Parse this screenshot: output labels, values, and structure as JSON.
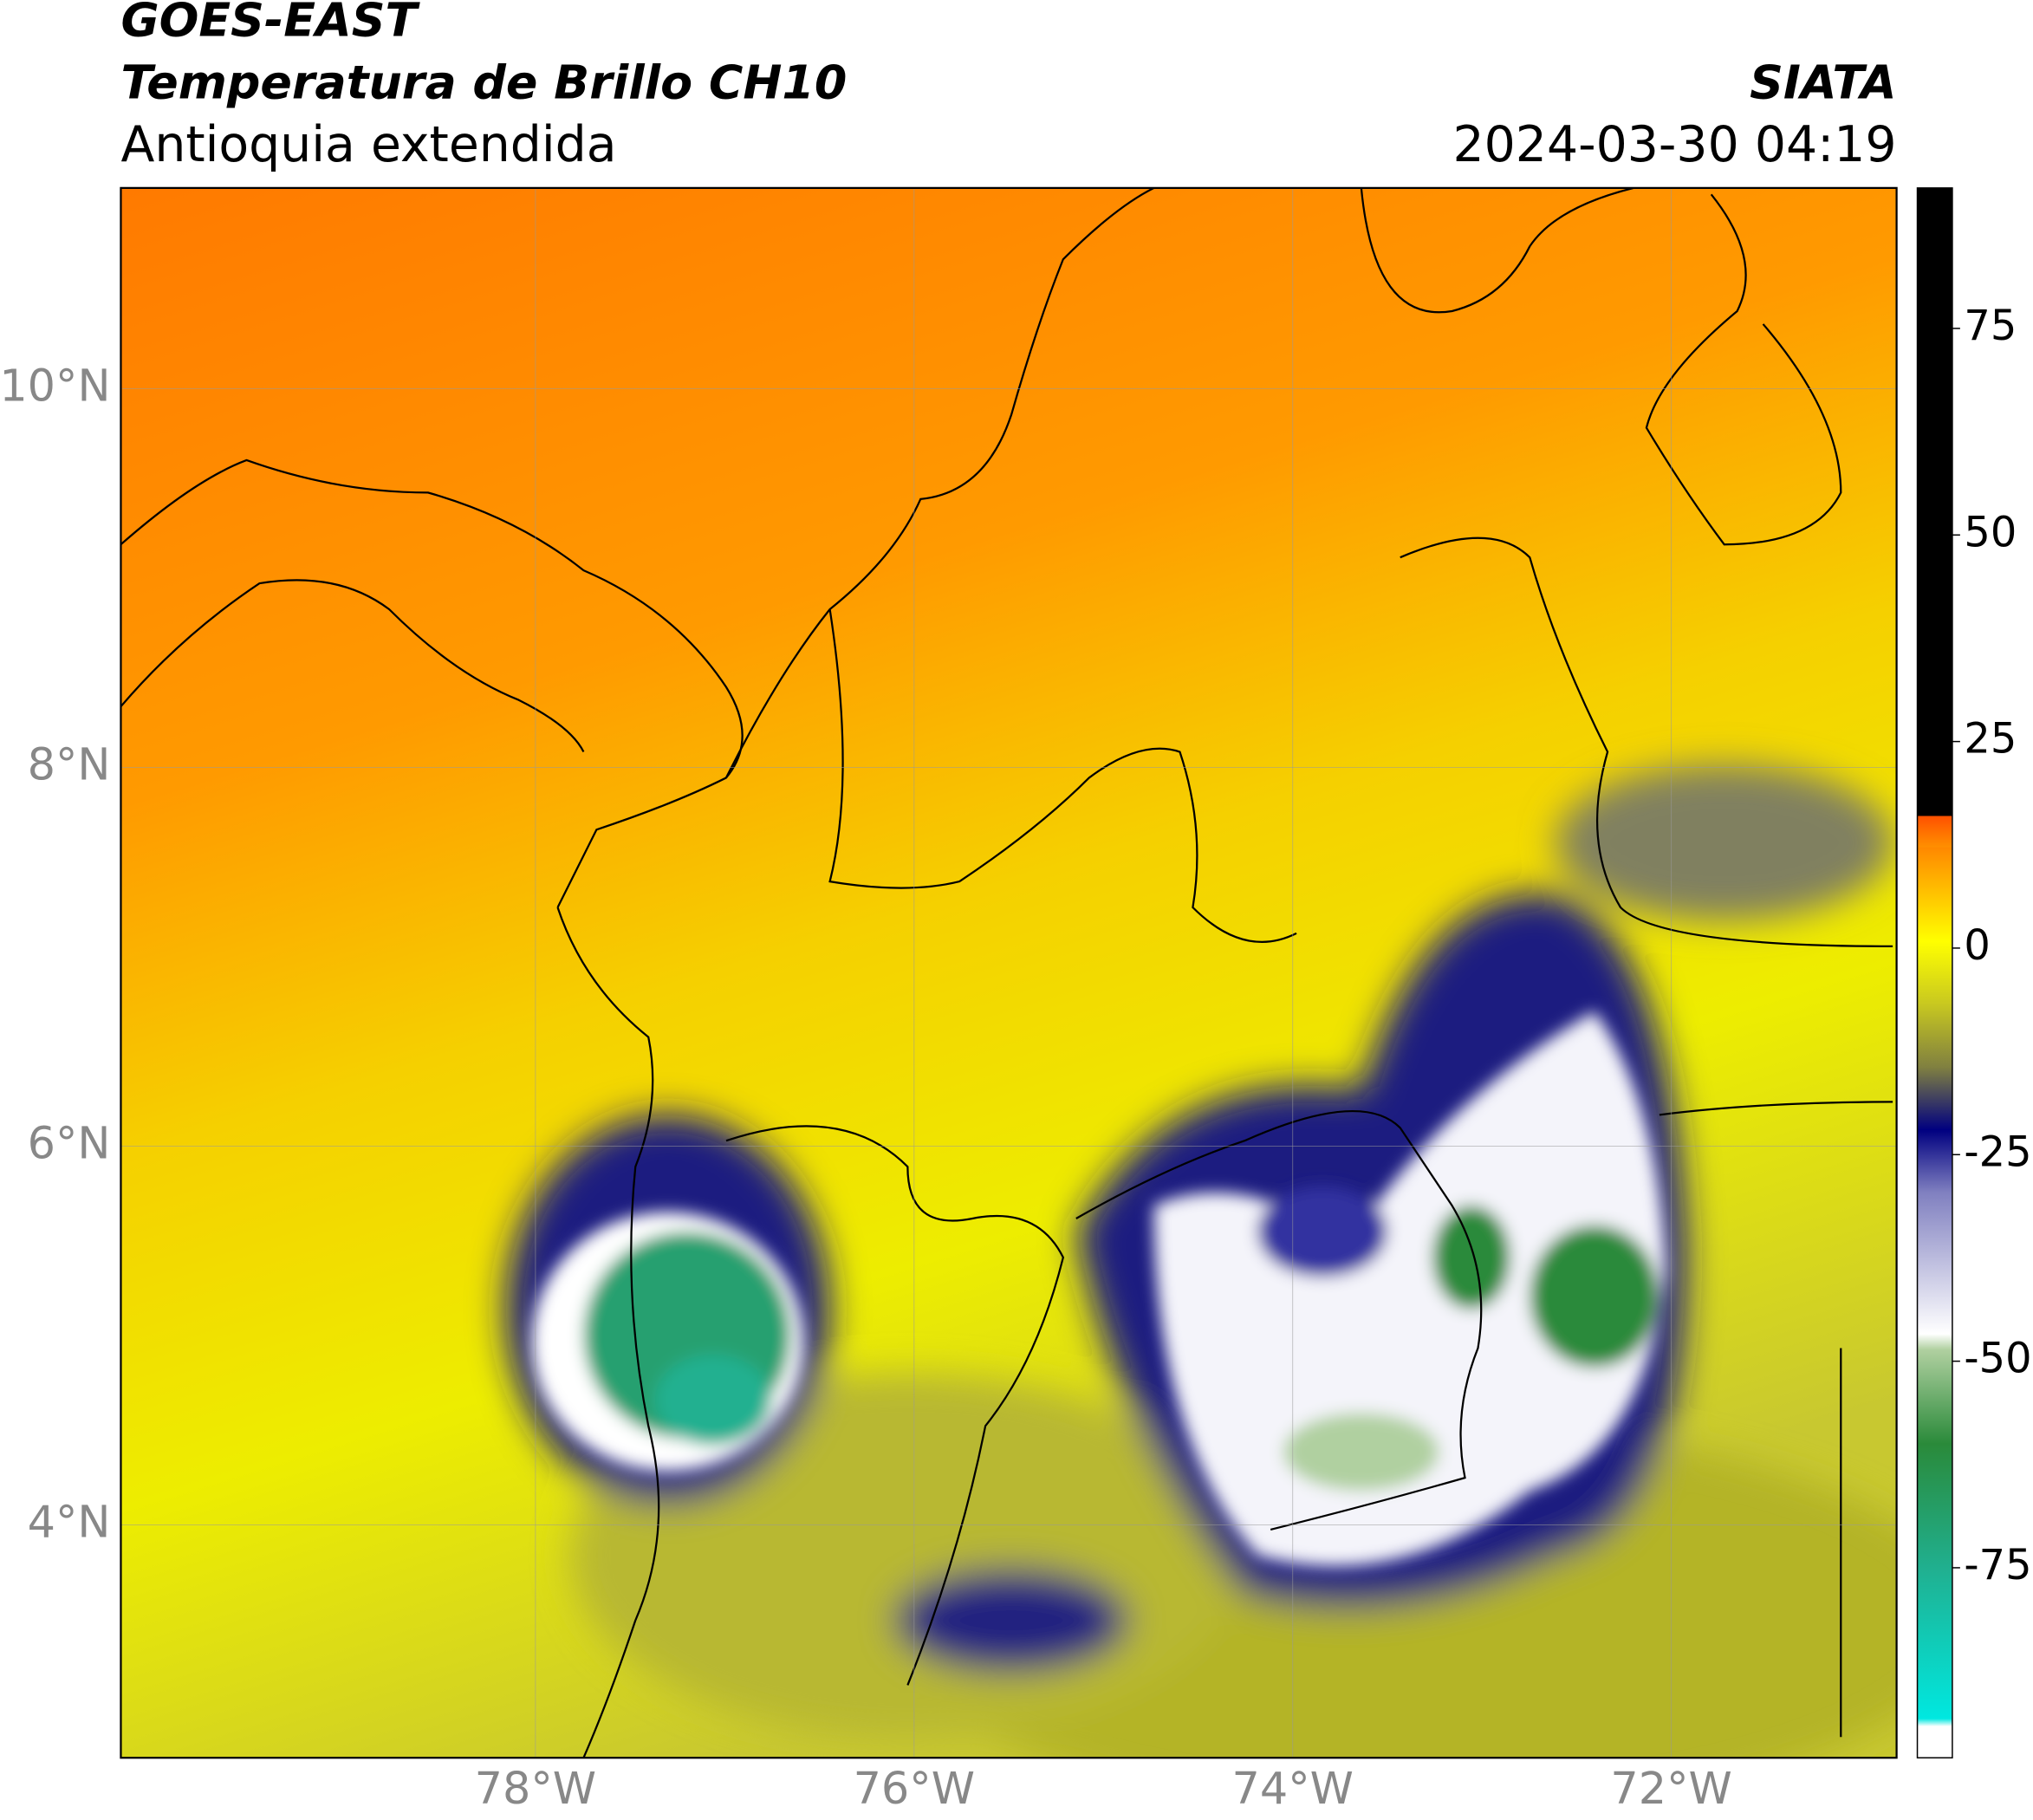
{
  "header": {
    "title": "GOES-EAST",
    "subtitle": "Temperatura de Brillo CH10",
    "region": "Antioquia extendida",
    "source": "SIATA",
    "datetime": "2024-03-30 04:19"
  },
  "map": {
    "xlim": [
      -80.19,
      -70.81
    ],
    "ylim": [
      2.77,
      11.06
    ],
    "xticks": [
      {
        "value": -78,
        "label": "78°W"
      },
      {
        "value": -76,
        "label": "76°W"
      },
      {
        "value": -74,
        "label": "74°W"
      },
      {
        "value": -72,
        "label": "72°W"
      }
    ],
    "yticks": [
      {
        "value": 4,
        "label": "4°N"
      },
      {
        "value": 6,
        "label": "6°N"
      },
      {
        "value": 8,
        "label": "8°N"
      },
      {
        "value": 10,
        "label": "10°N"
      }
    ],
    "grid": true
  },
  "colorbar": {
    "lim": [
      -98,
      92
    ],
    "ticks": [
      -75,
      -50,
      -25,
      0,
      25,
      50,
      75
    ]
  }
}
